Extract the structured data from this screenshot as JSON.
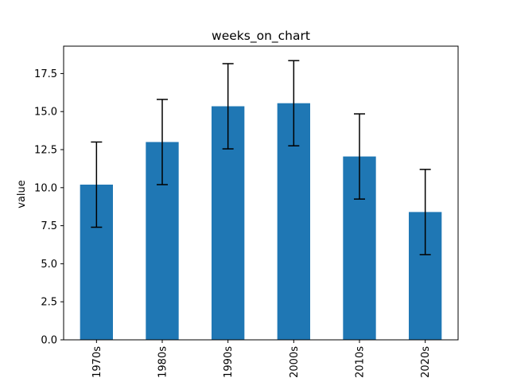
{
  "chart_data": {
    "type": "bar",
    "title": "weeks_on_chart",
    "xlabel": "",
    "ylabel": "value",
    "categories": [
      "1970s",
      "1980s",
      "1990s",
      "2000s",
      "2010s",
      "2020s"
    ],
    "values": [
      10.2,
      13.0,
      15.35,
      15.55,
      12.05,
      8.4
    ],
    "errors": [
      2.8,
      2.8,
      2.8,
      2.8,
      2.8,
      2.8
    ],
    "ylim": [
      0,
      19.3
    ],
    "yticks": [
      "0.0",
      "2.5",
      "5.0",
      "7.5",
      "10.0",
      "12.5",
      "15.0",
      "17.5"
    ],
    "ytick_values": [
      0,
      2.5,
      5,
      7.5,
      10,
      12.5,
      15,
      17.5
    ],
    "bar_color": "#1f77b4",
    "grid": false,
    "legend": "none"
  }
}
